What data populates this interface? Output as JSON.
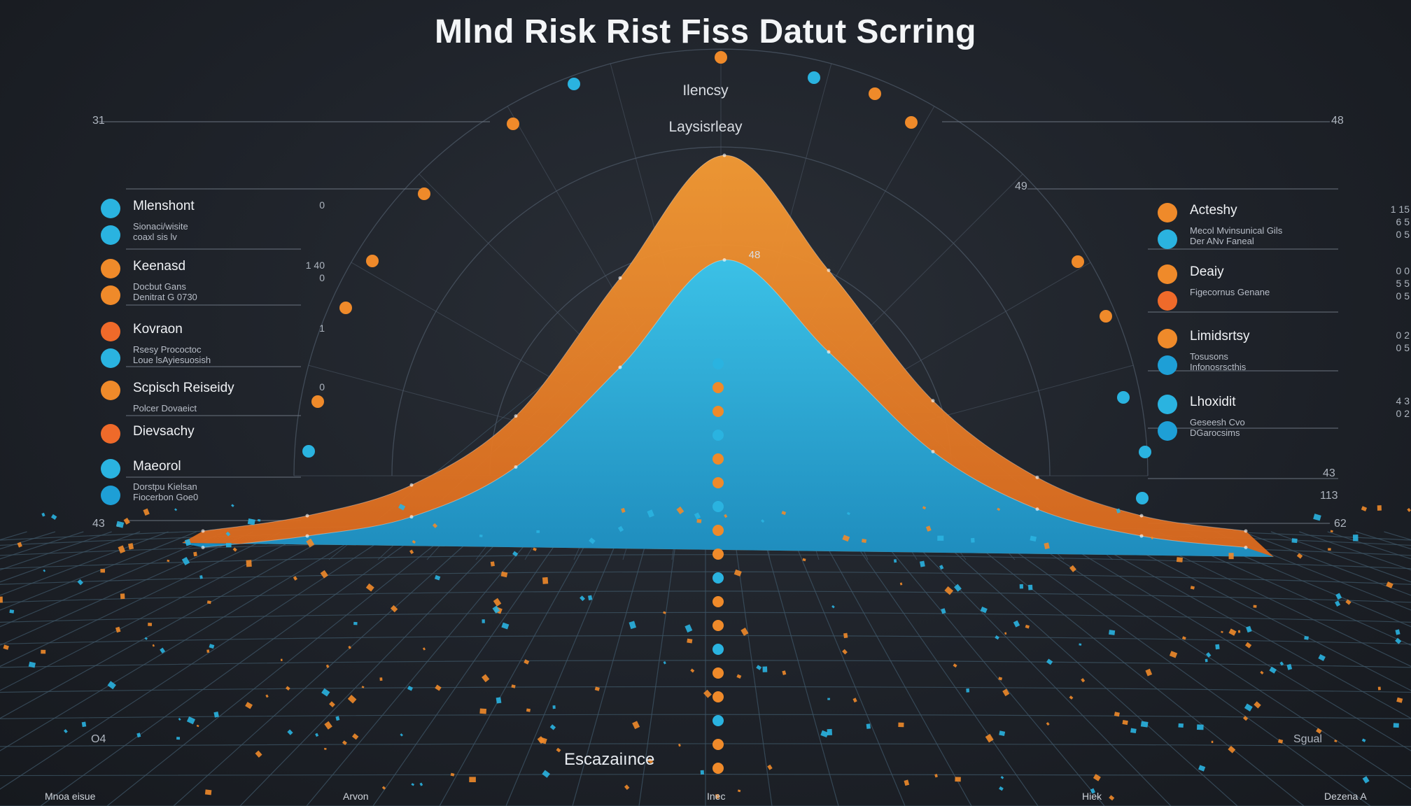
{
  "chart_data": {
    "type": "area",
    "title": "Mlnd Risk Rist Fiss Datut Scrring",
    "center_labels": [
      "Ilencsy",
      "Laysisrleay"
    ],
    "xlabel": "Escazaiınce",
    "peak_label": "48",
    "series": [
      {
        "name": "",
        "color": "#ef8a2a",
        "x": [
          0,
          10,
          20,
          30,
          40,
          50,
          60,
          70,
          80,
          90,
          100
        ],
        "values": [
          2,
          6,
          14,
          32,
          68,
          100,
          70,
          36,
          16,
          6,
          2
        ]
      },
      {
        "name": "",
        "color": "#2ab3e0",
        "x": [
          0,
          10,
          20,
          30,
          40,
          50,
          60,
          70,
          80,
          90,
          100
        ],
        "values": [
          1,
          4,
          9,
          22,
          48,
          76,
          52,
          26,
          11,
          4,
          1
        ]
      }
    ],
    "xlim": [
      0,
      100
    ],
    "ylim": [
      0,
      100
    ],
    "grid": true,
    "legend_left": [
      {
        "name": "Mlenshont",
        "desc": "Sionaci/wisite\ncoaxl sis lv",
        "value": "0",
        "c1": "#2ab3e0",
        "c2": "#2ab3e0"
      },
      {
        "name": "Keenasd",
        "desc": "Docbut Gans\nDenitrat G 0730",
        "value": "1 40\n0",
        "c1": "#ef8a2a",
        "c2": "#ef8a2a"
      },
      {
        "name": "Kovraon",
        "desc": "Rsesy Prococtoc\nLoue lsAyiesuosish",
        "value": "1",
        "c1": "#ef6a2a",
        "c2": "#2ab3e0"
      },
      {
        "name": "Scpisch Reiseidy",
        "desc": "Polcer Dovaeict",
        "value": "0",
        "c1": "#ef8a2a",
        "c2": ""
      },
      {
        "name": "Dievsachy",
        "desc": "",
        "value": "",
        "c1": "#ef6a2a",
        "c2": ""
      },
      {
        "name": "Maeorol",
        "desc": "Dorstpu Kielsan\nFiocerbon Goe0",
        "value": "",
        "c1": "#2ab3e0",
        "c2": "#1e9fd6"
      }
    ],
    "legend_right": [
      {
        "name": "Acteshy",
        "desc": "Mecol Mvinsunical Gils\nDer ANv Faneal",
        "value": "1 15\n6 5\n0 5",
        "c1": "#ef8a2a",
        "c2": "#2ab3e0"
      },
      {
        "name": "Deaiy",
        "desc": "Figecornus Genane",
        "value": "0 0\n5 5\n0 5",
        "c1": "#ef8a2a",
        "c2": "#ef6a2a"
      },
      {
        "name": "Limidsrtsy",
        "desc": "Tosusons\nInfonosrscthis",
        "value": "0 2\n0 5",
        "c1": "#ef8a2a",
        "c2": "#1e9fd6"
      },
      {
        "name": "Lhoxidit",
        "desc": "Geseesh Cvo\nDGarocsims",
        "value": "4 3\n0 2",
        "c1": "#2ab3e0",
        "c2": "#1e9fd6"
      }
    ],
    "edge_labels": {
      "top_left": "31",
      "top_right": "48",
      "mid_right": "49",
      "left_bottom": "43",
      "right_bottom": "62",
      "right_extra1": "43",
      "right_extra2": "113",
      "far_left": "O4",
      "far_right": "Sgual"
    },
    "bottom_labels": [
      "Mnoa eisue",
      "Arvon",
      "Inec",
      "Hiek",
      "Dezena A"
    ]
  },
  "colors": {
    "orange": "#ef8a2a",
    "blue": "#2ab3e0",
    "background": "#1b1f26"
  }
}
